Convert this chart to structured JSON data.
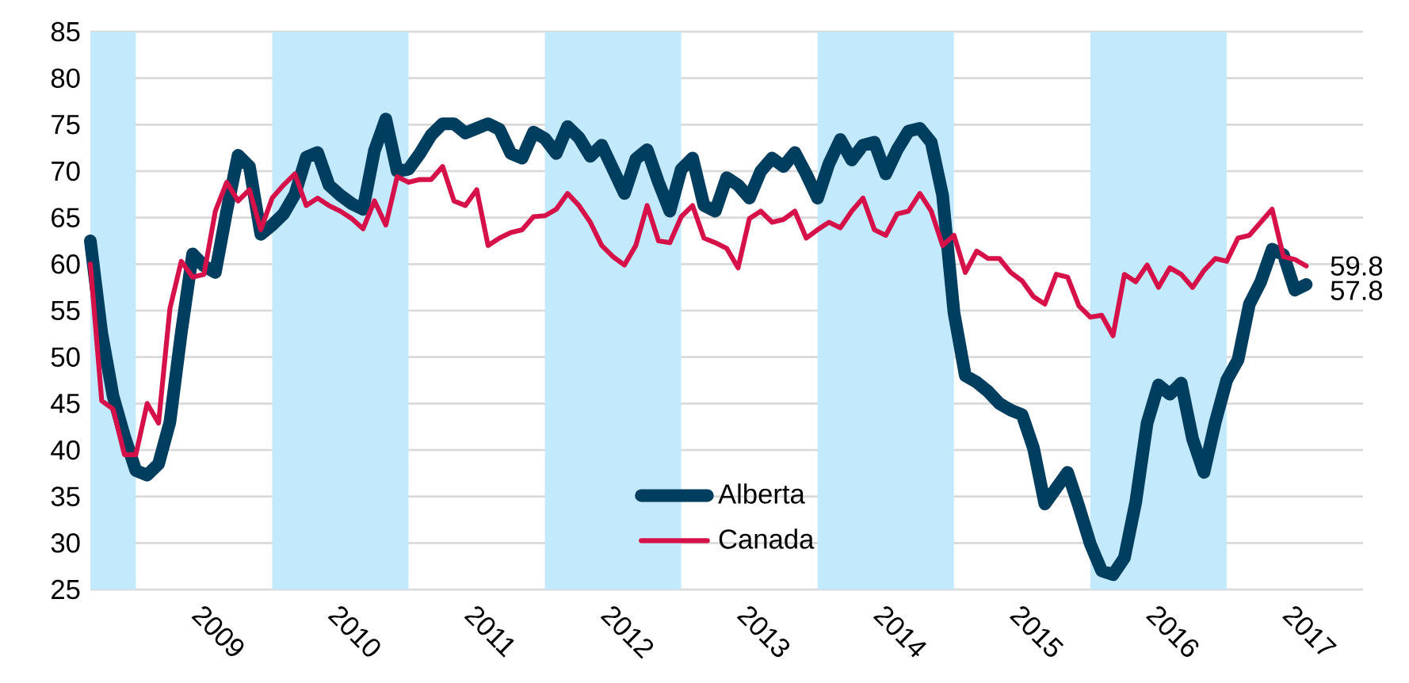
{
  "chart_data": {
    "type": "line",
    "x": [
      "2008-09",
      "2008-10",
      "2008-11",
      "2008-12",
      "2009-01",
      "2009-02",
      "2009-03",
      "2009-04",
      "2009-05",
      "2009-06",
      "2009-07",
      "2009-08",
      "2009-09",
      "2009-10",
      "2009-11",
      "2009-12",
      "2010-01",
      "2010-02",
      "2010-03",
      "2010-04",
      "2010-05",
      "2010-06",
      "2010-07",
      "2010-08",
      "2010-09",
      "2010-10",
      "2010-11",
      "2010-12",
      "2011-01",
      "2011-02",
      "2011-03",
      "2011-04",
      "2011-05",
      "2011-06",
      "2011-07",
      "2011-08",
      "2011-09",
      "2011-10",
      "2011-11",
      "2011-12",
      "2012-01",
      "2012-02",
      "2012-03",
      "2012-04",
      "2012-05",
      "2012-06",
      "2012-07",
      "2012-08",
      "2012-09",
      "2012-10",
      "2012-11",
      "2012-12",
      "2013-01",
      "2013-02",
      "2013-03",
      "2013-04",
      "2013-05",
      "2013-06",
      "2013-07",
      "2013-08",
      "2013-09",
      "2013-10",
      "2013-11",
      "2013-12",
      "2014-01",
      "2014-02",
      "2014-03",
      "2014-04",
      "2014-05",
      "2014-06",
      "2014-07",
      "2014-08",
      "2014-09",
      "2014-10",
      "2014-11",
      "2014-12",
      "2015-01",
      "2015-02",
      "2015-03",
      "2015-04",
      "2015-05",
      "2015-06",
      "2015-07",
      "2015-08",
      "2015-09",
      "2015-10",
      "2015-11",
      "2015-12",
      "2016-01",
      "2016-02",
      "2016-03",
      "2016-04",
      "2016-05",
      "2016-06",
      "2016-07",
      "2016-08",
      "2016-09",
      "2016-10",
      "2016-11",
      "2016-12",
      "2017-01",
      "2017-02",
      "2017-03",
      "2017-04",
      "2017-05",
      "2017-06",
      "2017-07",
      "2017-08"
    ],
    "series": [
      {
        "name": "Alberta",
        "color": "#003e5f",
        "values": [
          62.5,
          52.6,
          45.8,
          41.5,
          37.8,
          37.3,
          38.5,
          43,
          52.6,
          61.1,
          59.8,
          59.1,
          65.7,
          71.7,
          70.5,
          63.2,
          64.2,
          65.4,
          67.5,
          71.5,
          72,
          68.5,
          67.4,
          66.5,
          65.9,
          72.2,
          75.6,
          70,
          70.2,
          71.9,
          73.9,
          75.1,
          75.1,
          74.1,
          74.6,
          75.1,
          74.5,
          71.9,
          71.4,
          74.2,
          73.5,
          71.9,
          74.8,
          73.6,
          71.6,
          72.8,
          70.2,
          67.6,
          71.3,
          72.3,
          68.8,
          65.7,
          70.2,
          71.4,
          66.3,
          65.7,
          69.3,
          68.5,
          67.1,
          70,
          71.4,
          70.5,
          72,
          69.7,
          67.1,
          70.8,
          73.4,
          71.2,
          72.8,
          73.1,
          69.7,
          72.3,
          74.3,
          74.6,
          73.1,
          67.4,
          54.8,
          48,
          47.3,
          46.3,
          45,
          44.3,
          43.8,
          40.2,
          34.2,
          35.9,
          37.6,
          33.9,
          29.9,
          27,
          26.6,
          28.4,
          34.4,
          42.9,
          47,
          46,
          47.2,
          41.2,
          37.6,
          43,
          47.5,
          49.7,
          55.7,
          58.1,
          61.6,
          61,
          57.2,
          57.8
        ],
        "value_labels": [
          null,
          null,
          null,
          null,
          null,
          null,
          null,
          null,
          null,
          null,
          null,
          null,
          null,
          null,
          null,
          null,
          null,
          null,
          null,
          null,
          null,
          null,
          null,
          null,
          null,
          null,
          null,
          null,
          null,
          null,
          null,
          null,
          null,
          null,
          null,
          null,
          null,
          null,
          null,
          null,
          null,
          null,
          null,
          null,
          null,
          null,
          null,
          null,
          null,
          null,
          null,
          null,
          null,
          null,
          null,
          null,
          null,
          null,
          null,
          null,
          null,
          null,
          null,
          null,
          null,
          null,
          null,
          null,
          null,
          null,
          null,
          null,
          null,
          null,
          null,
          null,
          null,
          null,
          null,
          null,
          null,
          null,
          null,
          null,
          null,
          null,
          null,
          null,
          null,
          null,
          null,
          null,
          null,
          null,
          null,
          null,
          null,
          null,
          null,
          null,
          null,
          null,
          null,
          null,
          null,
          null,
          null,
          "57.8"
        ]
      },
      {
        "name": "Canada",
        "color": "#d6114a",
        "values": [
          60,
          45.3,
          44.4,
          39.5,
          39.5,
          45,
          42.9,
          55.2,
          60.3,
          58.6,
          58.9,
          65.7,
          68.8,
          66.8,
          68,
          63.7,
          67.1,
          68.5,
          69.7,
          66.3,
          67.1,
          66.3,
          65.7,
          64.9,
          63.8,
          66.8,
          64.2,
          69.4,
          68.8,
          69.1,
          69.1,
          70.5,
          66.8,
          66.3,
          68,
          62,
          62.8,
          63.4,
          63.7,
          65.1,
          65.2,
          65.9,
          67.6,
          66.3,
          64.5,
          62,
          60.8,
          59.9,
          62,
          66.3,
          62.5,
          62.3,
          65.1,
          66.3,
          62.8,
          62.3,
          61.7,
          59.6,
          64.9,
          65.7,
          64.5,
          64.8,
          65.7,
          62.8,
          63.7,
          64.5,
          63.9,
          65.7,
          67.1,
          63.7,
          63.1,
          65.4,
          65.7,
          67.6,
          65.7,
          62,
          63.1,
          59.1,
          61.4,
          60.6,
          60.6,
          59.1,
          58.2,
          56.5,
          55.7,
          58.9,
          58.6,
          55.5,
          54.3,
          54.5,
          52.3,
          58.9,
          58.1,
          59.9,
          57.5,
          59.6,
          58.9,
          57.5,
          59.3,
          60.6,
          60.3,
          62.8,
          63.1,
          64.5,
          65.9,
          60.8,
          60.5,
          59.8
        ],
        "value_labels": [
          null,
          null,
          null,
          null,
          null,
          null,
          null,
          null,
          null,
          null,
          null,
          null,
          null,
          null,
          null,
          null,
          null,
          null,
          null,
          null,
          null,
          null,
          null,
          null,
          null,
          null,
          null,
          null,
          null,
          null,
          null,
          null,
          null,
          null,
          null,
          null,
          null,
          null,
          null,
          null,
          null,
          null,
          null,
          null,
          null,
          null,
          null,
          null,
          null,
          null,
          null,
          null,
          null,
          null,
          null,
          null,
          null,
          null,
          null,
          null,
          null,
          null,
          null,
          null,
          null,
          null,
          null,
          null,
          null,
          null,
          null,
          null,
          null,
          null,
          null,
          null,
          null,
          null,
          null,
          null,
          null,
          null,
          null,
          null,
          null,
          null,
          null,
          null,
          null,
          null,
          null,
          null,
          null,
          null,
          null,
          null,
          null,
          null,
          null,
          null,
          null,
          null,
          null,
          null,
          null,
          null,
          null,
          "59.8"
        ]
      }
    ],
    "xlim": [
      "2008-09",
      "2018-01"
    ],
    "xticks": [
      {
        "value": "2009-07",
        "label": "2009"
      },
      {
        "value": "2010-07",
        "label": "2010"
      },
      {
        "value": "2011-07",
        "label": "2011"
      },
      {
        "value": "2012-07",
        "label": "2012"
      },
      {
        "value": "2013-07",
        "label": "2013"
      },
      {
        "value": "2014-07",
        "label": "2014"
      },
      {
        "value": "2015-07",
        "label": "2015"
      },
      {
        "value": "2016-07",
        "label": "2016"
      },
      {
        "value": "2017-07",
        "label": "2017"
      }
    ],
    "ylim": [
      25,
      85
    ],
    "yticks": [
      25,
      30,
      35,
      40,
      45,
      50,
      55,
      60,
      65,
      70,
      75,
      80,
      85
    ],
    "bands": [
      {
        "axis": "x",
        "from": "2008-09",
        "to": "2009-01",
        "color": "#c3e9fc"
      },
      {
        "axis": "x",
        "from": "2010-01",
        "to": "2011-01",
        "color": "#c3e9fc"
      },
      {
        "axis": "x",
        "from": "2012-01",
        "to": "2013-01",
        "color": "#c3e9fc"
      },
      {
        "axis": "x",
        "from": "2014-01",
        "to": "2015-01",
        "color": "#c3e9fc"
      },
      {
        "axis": "x",
        "from": "2016-01",
        "to": "2017-01",
        "color": "#c3e9fc"
      }
    ],
    "grid": "y",
    "legend": "bottom",
    "marker": "none",
    "line_style": "solid"
  }
}
